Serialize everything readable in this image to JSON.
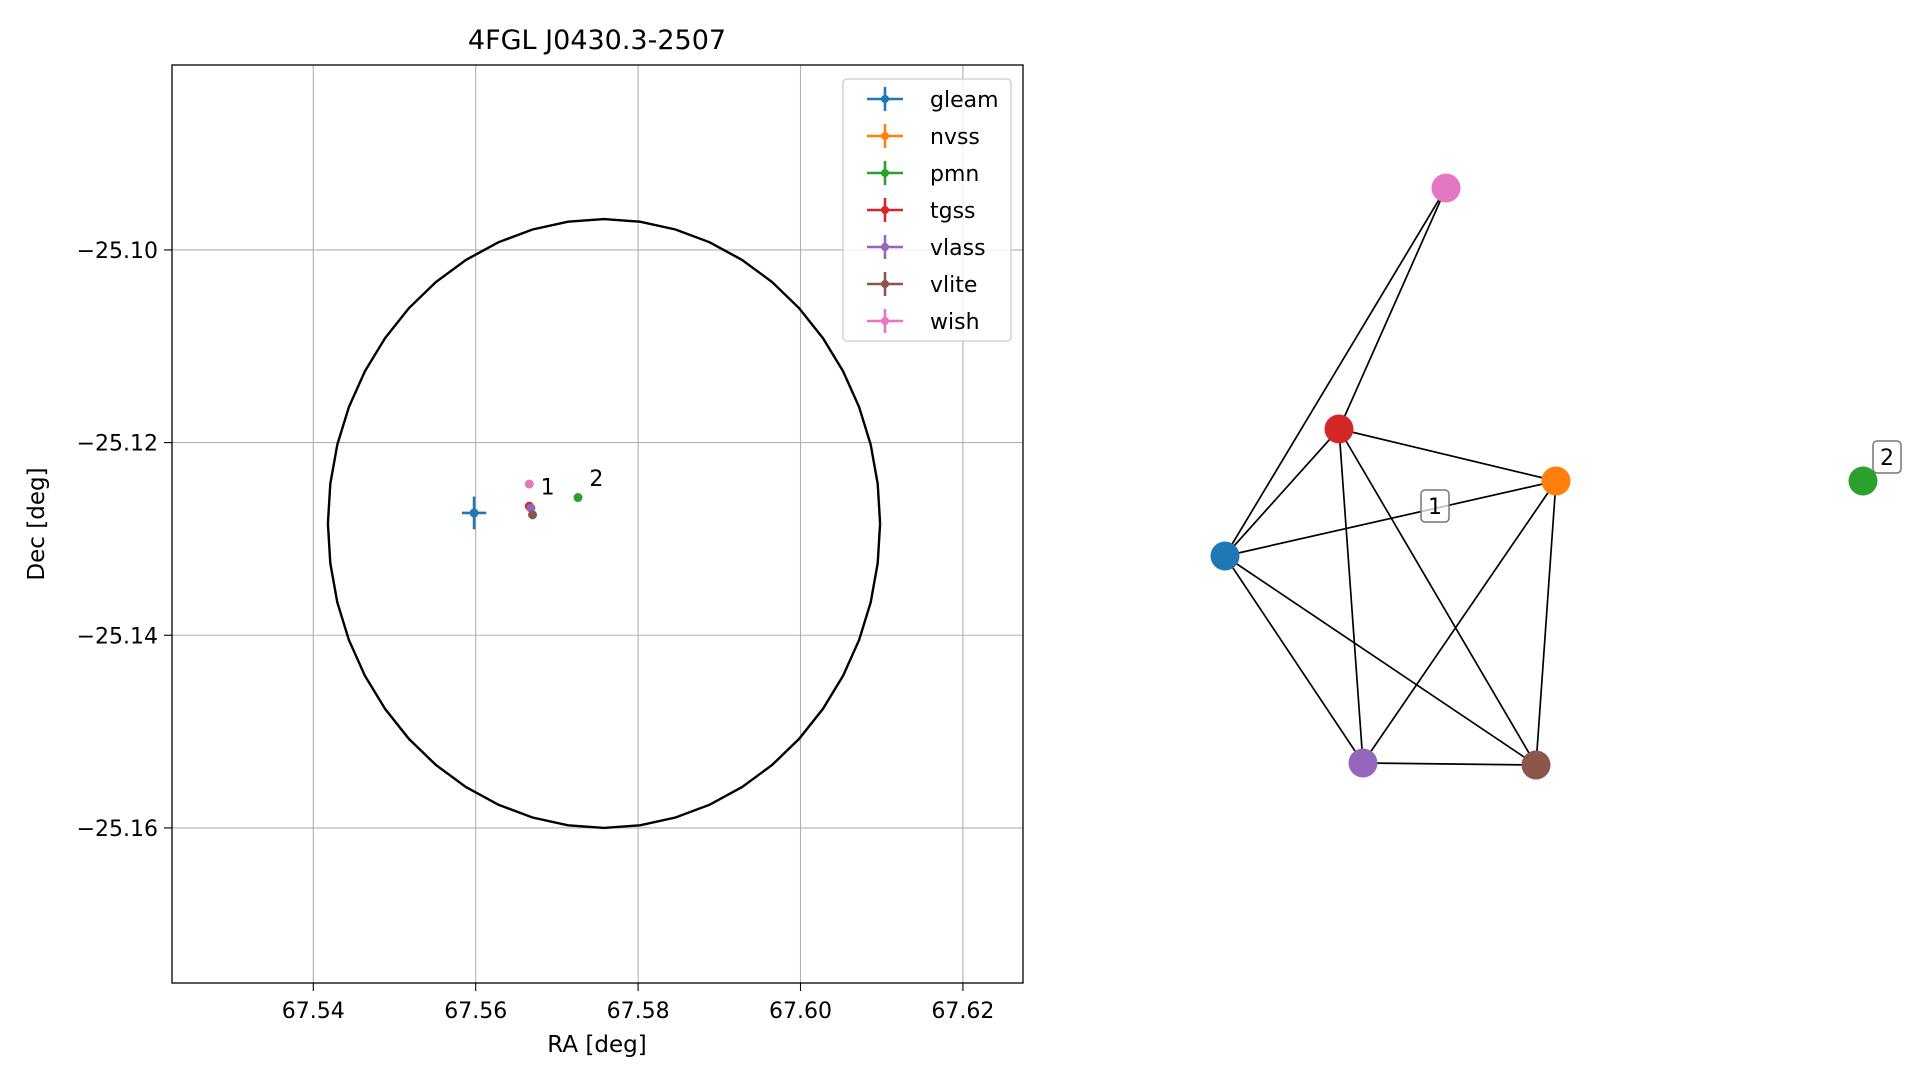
{
  "chart_data": [
    {
      "type": "scatter",
      "title": "4FGL J0430.3-2507",
      "xlabel": "RA [deg]",
      "ylabel": "Dec [deg]",
      "xlim": [
        67.5226,
        67.6274
      ],
      "ylim": [
        -25.1761,
        -25.0808
      ],
      "xticks": [
        67.54,
        67.56,
        67.58,
        67.6,
        67.62
      ],
      "xtick_labels": [
        "67.54",
        "67.56",
        "67.58",
        "67.60",
        "67.62"
      ],
      "yticks": [
        -25.1,
        -25.12,
        -25.14,
        -25.16
      ],
      "ytick_labels": [
        "−25.10",
        "−25.12",
        "−25.14",
        "−25.16"
      ],
      "grid": true,
      "legend_position": "top-right",
      "series": [
        {
          "name": "gleam",
          "color": "#1f77b4",
          "x": 67.5598,
          "y": -25.1273,
          "xerr": 0.0015,
          "yerr": 0.0017
        },
        {
          "name": "nvss",
          "color": "#ff7f0e",
          "x": null,
          "y": null
        },
        {
          "name": "pmn",
          "color": "#2ca02c",
          "x": 67.5726,
          "y": -25.1257
        },
        {
          "name": "tgss",
          "color": "#d62728",
          "x": 67.5666,
          "y": -25.1266
        },
        {
          "name": "vlass",
          "color": "#9467bd",
          "x": 67.5668,
          "y": -25.1268
        },
        {
          "name": "vlite",
          "color": "#8c564b",
          "x": 67.567,
          "y": -25.1275
        },
        {
          "name": "wish",
          "color": "#e377c2",
          "x": 67.5666,
          "y": -25.1243
        }
      ],
      "ellipse": {
        "center": [
          67.5758,
          -25.1284
        ],
        "ra_half_width": 0.034,
        "dec_half_height": 0.0316,
        "color": "#000000"
      },
      "annotations": [
        {
          "text": "1",
          "x": 67.568,
          "y": -25.1254
        },
        {
          "text": "2",
          "x": 67.574,
          "y": -25.1245
        }
      ]
    },
    {
      "type": "network",
      "nodes": [
        {
          "id": "gleam",
          "color": "#1f77b4"
        },
        {
          "id": "nvss",
          "color": "#ff7f0e"
        },
        {
          "id": "pmn",
          "color": "#2ca02c"
        },
        {
          "id": "tgss",
          "color": "#d62728"
        },
        {
          "id": "vlass",
          "color": "#9467bd"
        },
        {
          "id": "vlite",
          "color": "#8c564b"
        },
        {
          "id": "wish",
          "color": "#e377c2"
        }
      ],
      "edges": [
        [
          "gleam",
          "wish"
        ],
        [
          "gleam",
          "tgss"
        ],
        [
          "gleam",
          "nvss"
        ],
        [
          "gleam",
          "vlass"
        ],
        [
          "gleam",
          "vlite"
        ],
        [
          "tgss",
          "wish"
        ],
        [
          "tgss",
          "nvss"
        ],
        [
          "tgss",
          "vlass"
        ],
        [
          "tgss",
          "vlite"
        ],
        [
          "nvss",
          "vlass"
        ],
        [
          "nvss",
          "vlite"
        ],
        [
          "vlass",
          "vlite"
        ]
      ],
      "component_labels": [
        {
          "text": "1",
          "members": [
            "gleam",
            "nvss",
            "tgss",
            "vlass",
            "vlite",
            "wish"
          ]
        },
        {
          "text": "2",
          "members": [
            "pmn"
          ]
        }
      ]
    }
  ]
}
